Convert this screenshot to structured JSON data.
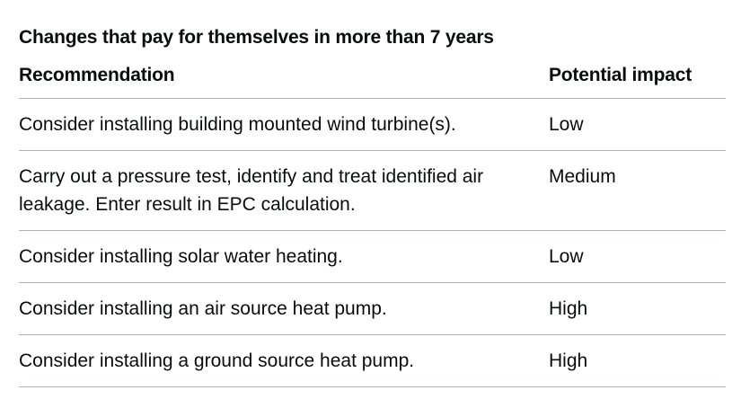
{
  "table": {
    "caption": "Changes that pay for themselves in more than 7 years",
    "headers": {
      "recommendation": "Recommendation",
      "impact": "Potential impact"
    },
    "rows": [
      {
        "recommendation": "Consider installing building mounted wind turbine(s).",
        "impact": "Low"
      },
      {
        "recommendation": "Carry out a pressure test, identify and treat identified air leakage. Enter result in EPC calculation.",
        "impact": "Medium"
      },
      {
        "recommendation": "Consider installing solar water heating.",
        "impact": "Low"
      },
      {
        "recommendation": "Consider installing an air source heat pump.",
        "impact": "High"
      },
      {
        "recommendation": "Consider installing a ground source heat pump.",
        "impact": "High"
      }
    ]
  }
}
